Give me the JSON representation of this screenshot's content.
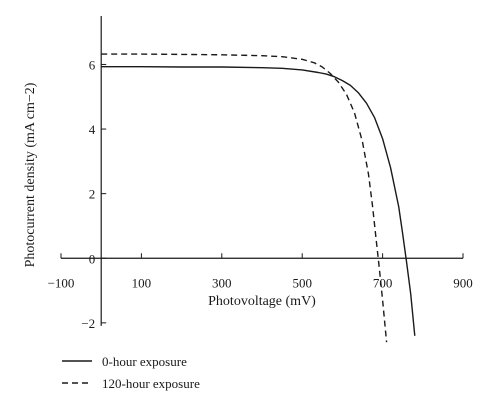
{
  "chart_data": {
    "type": "line",
    "xlabel": "Photovoltage (mV)",
    "ylabel": "Photocurrent density (mA cm−2)",
    "xlim": [
      -100,
      900
    ],
    "ylim": [
      -2.5,
      7.5
    ],
    "x_ticks": [
      -100,
      100,
      300,
      500,
      700,
      900
    ],
    "x_tick_labels": [
      "−100",
      "100",
      "300",
      "500",
      "700",
      "900"
    ],
    "y_ticks": [
      -2,
      0,
      2,
      4,
      6
    ],
    "y_tick_labels": [
      "−2",
      "0",
      "2",
      "4",
      "6"
    ],
    "legend_position": "bottom-left",
    "series": [
      {
        "name": "0-hour exposure",
        "line_style": "solid",
        "color": "#1a1a1a",
        "points": [
          [
            0,
            5.93
          ],
          [
            100,
            5.93
          ],
          [
            200,
            5.92
          ],
          [
            300,
            5.92
          ],
          [
            400,
            5.9
          ],
          [
            450,
            5.88
          ],
          [
            500,
            5.83
          ],
          [
            540,
            5.75
          ],
          [
            560,
            5.7
          ],
          [
            580,
            5.62
          ],
          [
            600,
            5.5
          ],
          [
            620,
            5.35
          ],
          [
            640,
            5.12
          ],
          [
            660,
            4.8
          ],
          [
            680,
            4.35
          ],
          [
            700,
            3.7
          ],
          [
            720,
            2.8
          ],
          [
            740,
            1.6
          ],
          [
            750,
            0.75
          ],
          [
            755,
            0.3
          ],
          [
            760,
            -0.15
          ],
          [
            770,
            -1.1
          ],
          [
            780,
            -2.4
          ]
        ]
      },
      {
        "name": "120-hour exposure",
        "line_style": "dashed",
        "color": "#1a1a1a",
        "points": [
          [
            0,
            6.32
          ],
          [
            100,
            6.32
          ],
          [
            200,
            6.31
          ],
          [
            300,
            6.3
          ],
          [
            400,
            6.27
          ],
          [
            450,
            6.24
          ],
          [
            500,
            6.16
          ],
          [
            530,
            6.05
          ],
          [
            550,
            5.92
          ],
          [
            570,
            5.72
          ],
          [
            590,
            5.45
          ],
          [
            610,
            5.08
          ],
          [
            630,
            4.5
          ],
          [
            650,
            3.6
          ],
          [
            665,
            2.6
          ],
          [
            675,
            1.6
          ],
          [
            685,
            0.45
          ],
          [
            690,
            -0.1
          ],
          [
            700,
            -1.3
          ],
          [
            710,
            -2.6
          ]
        ]
      }
    ]
  }
}
